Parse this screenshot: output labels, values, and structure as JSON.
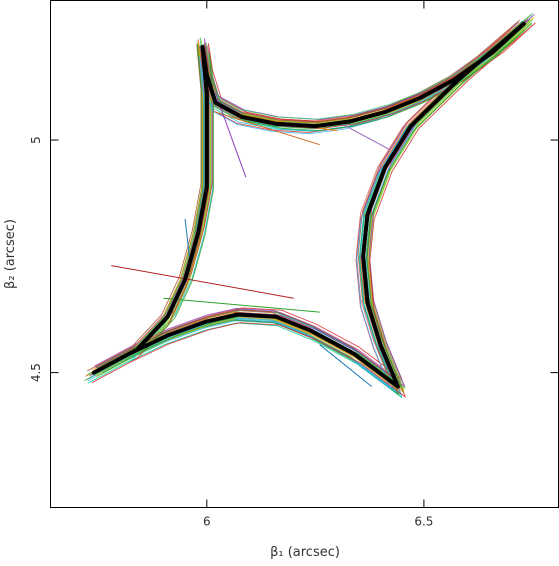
{
  "chart_data": {
    "type": "line",
    "xlabel": "β₁ (arcsec)",
    "ylabel": "β₂ (arcsec)",
    "xlim": [
      5.64,
      6.81
    ],
    "ylim": [
      4.21,
      5.3
    ],
    "xticks": [
      {
        "value": 6,
        "label": "6"
      },
      {
        "value": 6.5,
        "label": "6.5"
      }
    ],
    "yticks": [
      {
        "value": 5,
        "label": "5"
      },
      {
        "value": 4.5,
        "label": "4.5"
      }
    ],
    "grid": false,
    "legend": "none",
    "main_caustic": {
      "name": "",
      "color": "#000000",
      "x": [
        5.99,
        6.0,
        6.02,
        6.08,
        6.16,
        6.25,
        6.33,
        6.41,
        6.49,
        6.57,
        6.66,
        6.73,
        6.58,
        6.47,
        6.41,
        6.37,
        6.36,
        6.37,
        6.4,
        6.44,
        6.34,
        6.24,
        6.16,
        6.07,
        6.0,
        5.91,
        5.82,
        5.74,
        5.84,
        5.91,
        5.95,
        5.98,
        6.0,
        6.0,
        6.0,
        5.99
      ],
      "y": [
        5.2,
        5.14,
        5.08,
        5.05,
        5.035,
        5.03,
        5.04,
        5.06,
        5.09,
        5.13,
        5.19,
        5.25,
        5.13,
        5.03,
        4.94,
        4.84,
        4.75,
        4.65,
        4.56,
        4.47,
        4.54,
        4.59,
        4.62,
        4.625,
        4.61,
        4.58,
        4.54,
        4.5,
        4.55,
        4.62,
        4.7,
        4.8,
        4.9,
        5.0,
        5.1,
        5.2
      ]
    },
    "sample_caustics": {
      "count": 34,
      "colors": [
        "#d62728",
        "#2ca02c",
        "#1f77b4",
        "#ff7f0e",
        "#9467bd",
        "#17becf",
        "#bcbd22",
        "#e377c2",
        "#7fcf2f",
        "#00c89a",
        "#c8a800",
        "#8c3fbf",
        "#e35b5b",
        "#38b6ff",
        "#a0522d",
        "#33cc66"
      ]
    },
    "stray_segments": [
      {
        "x": [
          5.78,
          6.2
        ],
        "y": [
          4.73,
          4.66
        ],
        "color": "#b22222"
      },
      {
        "x": [
          6.02,
          6.26
        ],
        "y": [
          5.06,
          4.99
        ],
        "color": "#d2691e"
      },
      {
        "x": [
          6.3,
          6.42
        ],
        "y": [
          5.04,
          4.98
        ],
        "color": "#9467bd"
      },
      {
        "x": [
          6.02,
          6.09
        ],
        "y": [
          5.1,
          4.92
        ],
        "color": "#8c3fbf"
      },
      {
        "x": [
          5.9,
          6.26
        ],
        "y": [
          4.66,
          4.63
        ],
        "color": "#2ca02c"
      },
      {
        "x": [
          6.26,
          6.38
        ],
        "y": [
          4.56,
          4.47
        ],
        "color": "#1f77b4"
      },
      {
        "x": [
          5.95,
          5.96
        ],
        "y": [
          4.83,
          4.75
        ],
        "color": "#1f77b4"
      },
      {
        "x": [
          6.16,
          6.3
        ],
        "y": [
          5.04,
          5.02
        ],
        "color": "#ff7f0e"
      }
    ]
  }
}
